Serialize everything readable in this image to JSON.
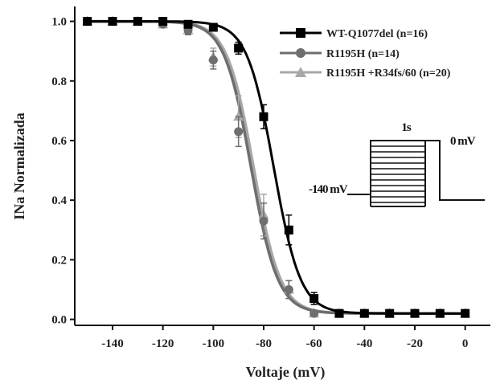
{
  "chart_data": {
    "type": "line",
    "xlabel": "Voltaje (mV)",
    "ylabel": "INa Normalizada",
    "xlim": [
      -155,
      10
    ],
    "ylim": [
      -0.02,
      1.05
    ],
    "xticks": [
      -140,
      -120,
      -100,
      -80,
      -60,
      -40,
      -20,
      0
    ],
    "yticks": [
      0.0,
      0.2,
      0.4,
      0.6,
      0.8,
      1.0
    ],
    "tick_labels_x": [
      "-140",
      "-120",
      "-100",
      "-80",
      "-60",
      "-40",
      "-20",
      "0"
    ],
    "tick_labels_y": [
      "0.0",
      "0.2",
      "0.4",
      "0.6",
      "0.8",
      "1.0"
    ],
    "grid": false,
    "legend_position": "top-right",
    "x": [
      -150,
      -140,
      -130,
      -120,
      -110,
      -100,
      -90,
      -80,
      -70,
      -60,
      -50,
      -40,
      -30,
      -20,
      -10,
      0
    ],
    "series": [
      {
        "name": "WT-Q1077del (n=16)",
        "marker": "square",
        "color": "#000000",
        "values": [
          1.0,
          1.0,
          1.0,
          1.0,
          0.99,
          0.98,
          0.91,
          0.68,
          0.3,
          0.07,
          0.02,
          0.02,
          0.02,
          0.02,
          0.02,
          0.02
        ],
        "errors": [
          0.005,
          0.005,
          0.005,
          0.005,
          0.008,
          0.01,
          0.02,
          0.04,
          0.05,
          0.02,
          0.01,
          0.01,
          0.01,
          0.01,
          0.01,
          0.01
        ],
        "fit_v_half": -76,
        "fit_k": 5.3
      },
      {
        "name": "R1195H (n=14)",
        "marker": "circle",
        "color": "#6e6e6e",
        "values": [
          1.0,
          1.0,
          1.0,
          0.99,
          0.97,
          0.87,
          0.63,
          0.33,
          0.1,
          0.02,
          0.02,
          0.02,
          0.02,
          0.02,
          0.02,
          0.02
        ],
        "errors": [
          0.005,
          0.005,
          0.005,
          0.01,
          0.015,
          0.03,
          0.05,
          0.06,
          0.03,
          0.01,
          0.01,
          0.01,
          0.01,
          0.01,
          0.01,
          0.01
        ],
        "fit_v_half": -85,
        "fit_k": 5.3
      },
      {
        "name": "R1195H +R34fs/60 (n=20)",
        "marker": "triangle",
        "color": "#a8a8a8",
        "values": [
          1.0,
          1.0,
          1.0,
          0.99,
          0.97,
          0.88,
          0.68,
          0.35,
          0.1,
          0.02,
          0.02,
          0.02,
          0.02,
          0.02,
          0.02,
          0.02
        ],
        "errors": [
          0.005,
          0.005,
          0.005,
          0.01,
          0.015,
          0.03,
          0.07,
          0.07,
          0.03,
          0.01,
          0.01,
          0.01,
          0.01,
          0.01,
          0.01,
          0.01
        ],
        "fit_v_half": -84,
        "fit_k": 5.3
      }
    ],
    "inset": {
      "duration_label": "1s",
      "test_label": "0 mV",
      "hold_label": "-140 mV"
    }
  }
}
